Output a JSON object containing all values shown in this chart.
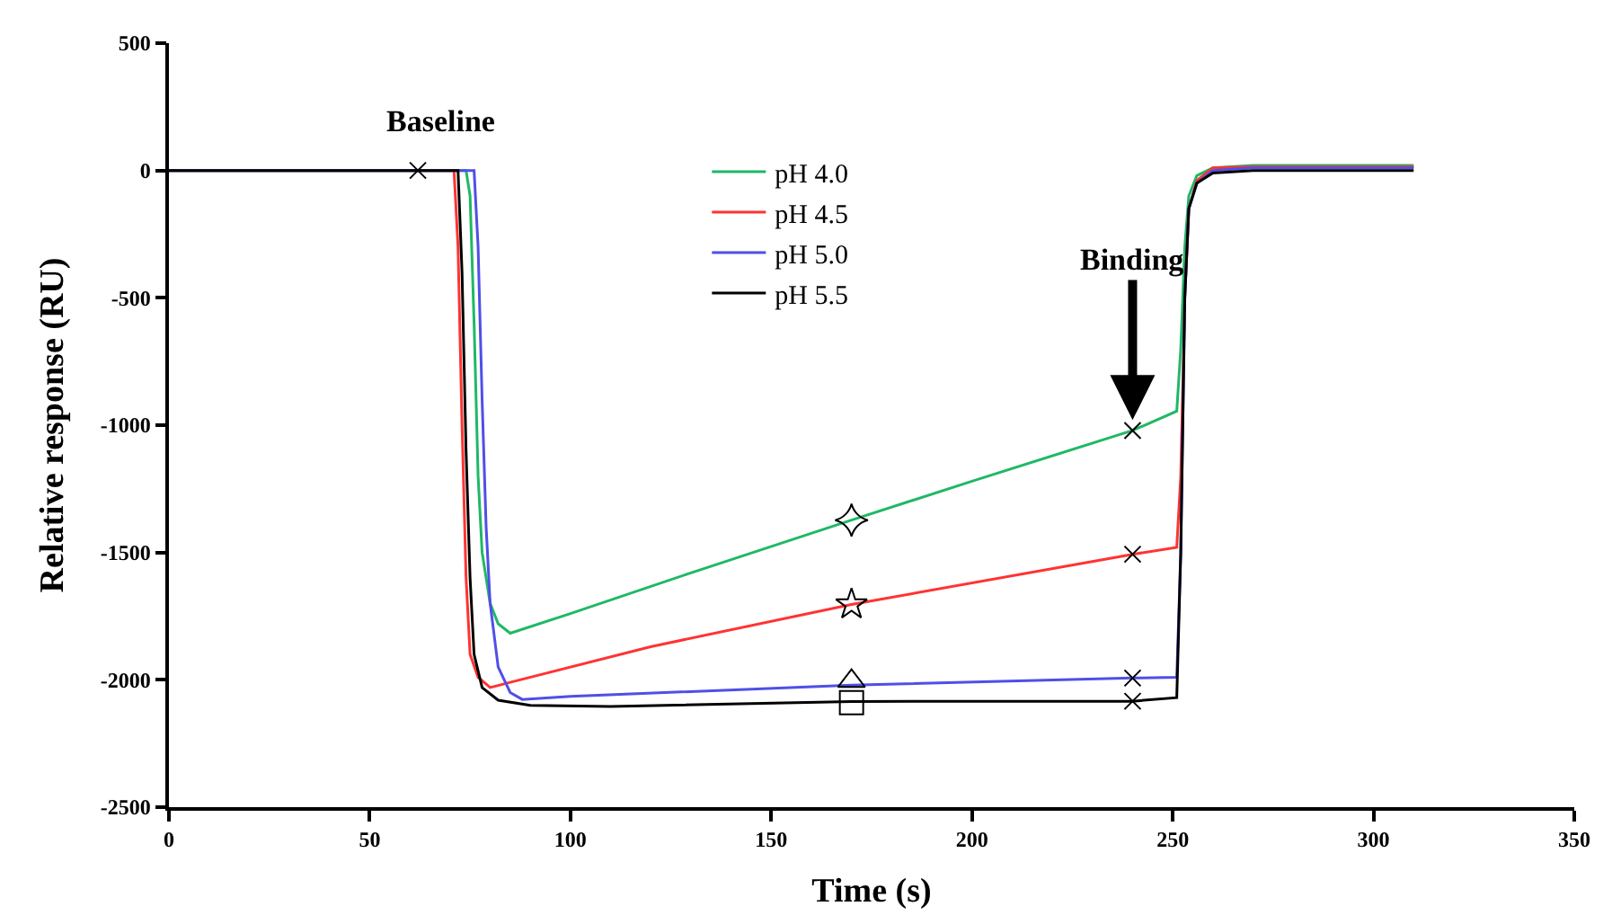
{
  "chart_data": {
    "type": "line",
    "xlabel": "Time (s)",
    "ylabel": "Relative response (RU)",
    "xlim": [
      0,
      350
    ],
    "xticks": [
      0,
      50,
      100,
      150,
      200,
      250,
      300,
      350
    ],
    "ylim": [
      -2500,
      500
    ],
    "yticks": [
      -2500,
      -2000,
      -1500,
      -1000,
      -500,
      0,
      500
    ],
    "legend": "top",
    "line_style": "solid",
    "series": [
      {
        "name": "pH 4.0",
        "color": "#1fb866",
        "x": [
          0,
          74,
          75,
          76,
          77,
          78,
          80,
          82,
          85,
          100,
          130,
          170,
          200,
          240,
          251,
          252,
          253,
          254,
          256,
          260,
          270,
          310
        ],
        "values": [
          0,
          0,
          -100,
          -600,
          -1200,
          -1500,
          -1700,
          -1780,
          -1817,
          -1740,
          -1580,
          -1373,
          -1220,
          -1021,
          -945,
          -700,
          -300,
          -100,
          -20,
          10,
          20,
          20
        ]
      },
      {
        "name": "pH 4.5",
        "color": "#ff3333",
        "x": [
          0,
          71,
          72,
          73,
          74,
          75,
          77,
          80,
          85,
          120,
          170,
          240,
          251,
          252,
          253,
          254,
          256,
          260,
          270,
          310
        ],
        "values": [
          0,
          0,
          -300,
          -1000,
          -1600,
          -1900,
          -1990,
          -2030,
          -2010,
          -1870,
          -1704,
          -1507,
          -1480,
          -1200,
          -500,
          -150,
          -40,
          10,
          15,
          15
        ]
      },
      {
        "name": "pH 5.0",
        "color": "#4f4fe8",
        "x": [
          0,
          76,
          77,
          78,
          79,
          80,
          82,
          85,
          88,
          100,
          170,
          240,
          251,
          252,
          253,
          254,
          256,
          260,
          270,
          310
        ],
        "values": [
          0,
          0,
          -300,
          -900,
          -1400,
          -1700,
          -1950,
          -2050,
          -2077,
          -2065,
          -2021,
          -1993,
          -1990,
          -1500,
          -500,
          -150,
          -50,
          0,
          10,
          10
        ]
      },
      {
        "name": "pH 5.5",
        "color": "#000000",
        "x": [
          0,
          72,
          73,
          74,
          75,
          76,
          78,
          82,
          90,
          110,
          170,
          240,
          251,
          252,
          253,
          254,
          256,
          260,
          270,
          310
        ],
        "values": [
          0,
          0,
          -400,
          -1100,
          -1600,
          -1900,
          -2030,
          -2080,
          -2100,
          -2105,
          -2085,
          -2084,
          -2070,
          -1500,
          -500,
          -150,
          -50,
          -10,
          0,
          0
        ]
      },
      {
        "type": "scatter",
        "color": "#000000",
        "marker": "diamond",
        "x": [
          170
        ],
        "values": [
          -1373
        ]
      },
      {
        "type": "scatter",
        "color": "#000000",
        "marker": "star",
        "x": [
          170
        ],
        "values": [
          -1704
        ]
      },
      {
        "type": "scatter",
        "color": "#000000",
        "marker": "triangle",
        "x": [
          170
        ],
        "values": [
          -2005
        ]
      },
      {
        "type": "scatter",
        "color": "#000000",
        "marker": "square",
        "x": [
          170
        ],
        "values": [
          -2090
        ]
      },
      {
        "type": "scatter",
        "color": "#000000",
        "marker": "cross",
        "x": [
          62,
          240,
          240,
          240,
          240
        ],
        "values": [
          0,
          -1021,
          -1507,
          -1993,
          -2084
        ]
      }
    ],
    "annotations": [
      {
        "text": "Baseline",
        "x": 62,
        "y": 0
      },
      {
        "text": "Binding",
        "x": 240,
        "y": -980
      }
    ]
  }
}
